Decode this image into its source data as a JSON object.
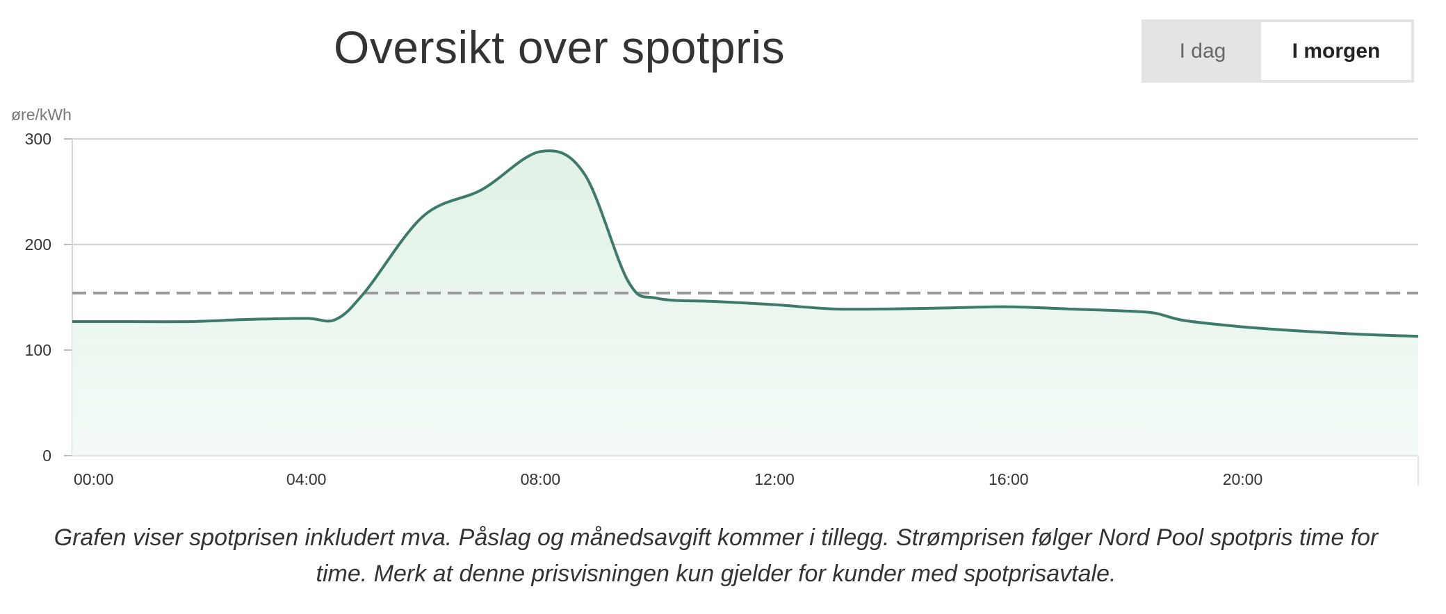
{
  "header": {
    "title": "Oversikt over spotpris"
  },
  "toggle": {
    "today_label": "I dag",
    "tomorrow_label": "I morgen",
    "selected": "tomorrow"
  },
  "caption": "Grafen viser spotprisen inkludert mva. Påslag og månedsavgift kommer i tillegg. Strømprisen følger Nord Pool spotpris time for time. Merk at denne prisvisningen kun gjelder for kunder med spotprisavtale.",
  "chart_data": {
    "type": "area",
    "title": "Oversikt over spotpris",
    "ylabel": "øre/kWh",
    "xlabel": "",
    "ylim": [
      0,
      300
    ],
    "y_ticks": [
      0,
      100,
      200,
      300
    ],
    "x_ticks": [
      "00:00",
      "04:00",
      "08:00",
      "12:00",
      "16:00",
      "20:00"
    ],
    "grid": true,
    "line_color": "#3d7a6b",
    "fill_color": "#e4f4e9",
    "average_line_color": "#999999",
    "average": 154,
    "series": [
      {
        "x": [
          "00:00",
          "01:00",
          "02:00",
          "03:00",
          "04:00",
          "04:30",
          "05:00",
          "06:00",
          "07:00",
          "08:00",
          "08:45",
          "09:30",
          "10:00",
          "11:00",
          "12:00",
          "13:00",
          "14:00",
          "15:00",
          "16:00",
          "17:00",
          "18:00",
          "18:30",
          "19:00",
          "20:00",
          "21:00",
          "22:00",
          "23:00"
        ],
        "values": [
          127,
          127,
          127,
          129,
          130,
          129,
          155,
          227,
          252,
          288,
          267,
          165,
          149,
          146,
          143,
          139,
          139,
          140,
          141,
          139,
          137,
          135,
          128,
          122,
          118,
          115,
          113
        ]
      }
    ]
  }
}
